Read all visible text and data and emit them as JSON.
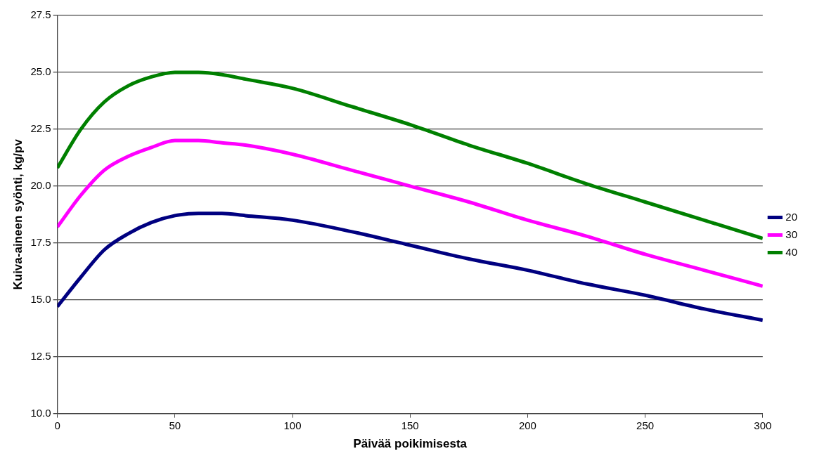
{
  "chart_data": {
    "type": "line",
    "xlabel": "Päivää poikimisesta",
    "ylabel": "Kuiva-aineen syönti, kg/pv",
    "x": [
      0,
      10,
      20,
      30,
      40,
      50,
      60,
      70,
      80,
      100,
      125,
      150,
      175,
      200,
      225,
      250,
      275,
      300
    ],
    "series": [
      {
        "name": "20",
        "color": "#000080",
        "values": [
          14.7,
          16.0,
          17.2,
          17.9,
          18.4,
          18.7,
          18.8,
          18.8,
          18.7,
          18.5,
          18.0,
          17.4,
          16.8,
          16.3,
          15.7,
          15.2,
          14.6,
          14.1
        ]
      },
      {
        "name": "30",
        "color": "#ff00ff",
        "values": [
          18.2,
          19.6,
          20.7,
          21.3,
          21.7,
          22.0,
          22.0,
          21.9,
          21.8,
          21.4,
          20.7,
          20.0,
          19.3,
          18.5,
          17.8,
          17.0,
          16.3,
          15.6
        ]
      },
      {
        "name": "40",
        "color": "#008000",
        "values": [
          20.8,
          22.5,
          23.7,
          24.4,
          24.8,
          25.0,
          25.0,
          24.9,
          24.7,
          24.3,
          23.5,
          22.7,
          21.8,
          21.0,
          20.1,
          19.3,
          18.5,
          17.7
        ]
      }
    ],
    "xlim": [
      0,
      300
    ],
    "xticks": [
      0,
      50,
      100,
      150,
      200,
      250,
      300
    ],
    "ylim": [
      10,
      27.5
    ],
    "yticks": [
      {
        "value": 10,
        "label": "10.0"
      },
      {
        "value": 12.5,
        "label": "12.5"
      },
      {
        "value": 15,
        "label": "15.0"
      },
      {
        "value": 17.5,
        "label": "17.5"
      },
      {
        "value": 20,
        "label": "20.0"
      },
      {
        "value": 22.5,
        "label": "22.5"
      },
      {
        "value": 25,
        "label": "25.0"
      },
      {
        "value": 27.5,
        "label": "27.5"
      }
    ],
    "grid": "y",
    "legend": "right",
    "marker": "none",
    "line_style": "solid"
  }
}
